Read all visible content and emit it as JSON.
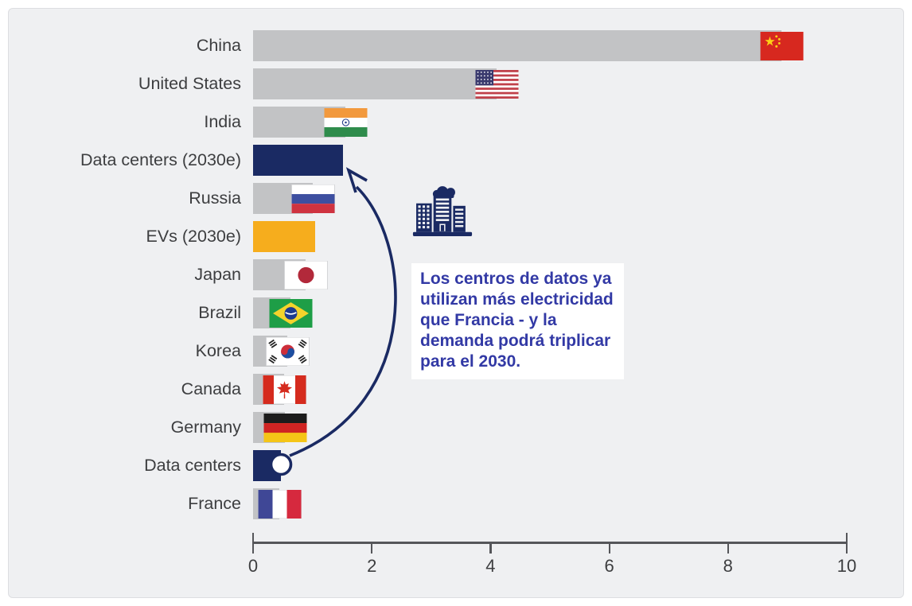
{
  "page": {
    "background": "#ffffff",
    "panel_background": "#eff0f2"
  },
  "chart_data": {
    "type": "bar",
    "orientation": "horizontal",
    "title": "",
    "xlabel": "",
    "ylabel": "",
    "xlim": [
      0,
      10
    ],
    "x_ticks": [
      "0",
      "2",
      "4",
      "6",
      "8",
      "10"
    ],
    "grid": false,
    "legend": "none",
    "bar_color_default": "#c2c3c5",
    "highlight_navy": "#1a2a63",
    "highlight_yellow": "#f6ad1d",
    "bars": [
      {
        "label": "China",
        "value": 8.9,
        "color": "#c2c3c5",
        "flag": "china"
      },
      {
        "label": "United States",
        "value": 4.1,
        "color": "#c2c3c5",
        "flag": "usa"
      },
      {
        "label": "India",
        "value": 1.55,
        "color": "#c2c3c5",
        "flag": "india"
      },
      {
        "label": "Data centers (2030e)",
        "value": 1.52,
        "color": "#1a2a63"
      },
      {
        "label": "Russia",
        "value": 1.0,
        "color": "#c2c3c5",
        "flag": "russia"
      },
      {
        "label": "EVs (2030e)",
        "value": 1.05,
        "color": "#f6ad1d"
      },
      {
        "label": "Japan",
        "value": 0.88,
        "color": "#c2c3c5",
        "flag": "japan"
      },
      {
        "label": "Brazil",
        "value": 0.63,
        "color": "#c2c3c5",
        "flag": "brazil"
      },
      {
        "label": "Korea",
        "value": 0.57,
        "color": "#c2c3c5",
        "flag": "korea"
      },
      {
        "label": "Canada",
        "value": 0.52,
        "color": "#c2c3c5",
        "flag": "canada"
      },
      {
        "label": "Germany",
        "value": 0.54,
        "color": "#c2c3c5",
        "flag": "germany"
      },
      {
        "label": "Data centers",
        "value": 0.47,
        "color": "#1a2a63",
        "marker": "circle"
      },
      {
        "label": "France",
        "value": 0.44,
        "color": "#c2c3c5",
        "flag": "france"
      }
    ]
  },
  "annotation": {
    "icon": "data-center-building-icon",
    "lines": [
      "Los centros de datos ya",
      "utilizan más electricidad",
      "que Francia - y la",
      "demanda podrá triplicar",
      "para el 2030."
    ],
    "text_color": "#3239a5",
    "arrow_color": "#1a2a63",
    "icon_color": "#1a2a63"
  }
}
